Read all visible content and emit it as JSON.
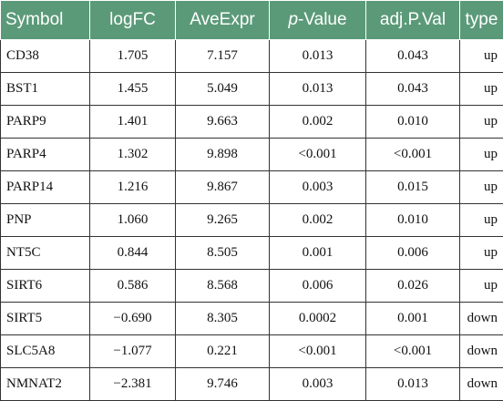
{
  "table": {
    "headers": {
      "symbol": "Symbol",
      "logfc": "logFC",
      "aveexpr": "AveExpr",
      "pvalue_italic": "p",
      "pvalue_rest": "-Value",
      "adjpval": "adj.P.Val",
      "type": "type"
    },
    "rows": [
      {
        "symbol": "CD38",
        "logfc": "1.705",
        "aveexpr": "7.157",
        "pvalue": "0.013",
        "adjpval": "0.043",
        "type": "up"
      },
      {
        "symbol": "BST1",
        "logfc": "1.455",
        "aveexpr": "5.049",
        "pvalue": "0.013",
        "adjpval": "0.043",
        "type": "up"
      },
      {
        "symbol": "PARP9",
        "logfc": "1.401",
        "aveexpr": "9.663",
        "pvalue": "0.002",
        "adjpval": "0.010",
        "type": "up"
      },
      {
        "symbol": "PARP4",
        "logfc": "1.302",
        "aveexpr": "9.898",
        "pvalue": "<0.001",
        "adjpval": "<0.001",
        "type": "up"
      },
      {
        "symbol": "PARP14",
        "logfc": "1.216",
        "aveexpr": "9.867",
        "pvalue": "0.003",
        "adjpval": "0.015",
        "type": "up"
      },
      {
        "symbol": "PNP",
        "logfc": "1.060",
        "aveexpr": "9.265",
        "pvalue": "0.002",
        "adjpval": "0.010",
        "type": "up"
      },
      {
        "symbol": "NT5C",
        "logfc": "0.844",
        "aveexpr": "8.505",
        "pvalue": "0.001",
        "adjpval": "0.006",
        "type": "up"
      },
      {
        "symbol": "SIRT6",
        "logfc": "0.586",
        "aveexpr": "8.568",
        "pvalue": "0.006",
        "adjpval": "0.026",
        "type": "up"
      },
      {
        "symbol": "SIRT5",
        "logfc": "−0.690",
        "aveexpr": "8.305",
        "pvalue": "0.0002",
        "adjpval": "0.001",
        "type": "down"
      },
      {
        "symbol": "SLC5A8",
        "logfc": "−1.077",
        "aveexpr": "0.221",
        "pvalue": "<0.001",
        "adjpval": "<0.001",
        "type": "down"
      },
      {
        "symbol": "NMNAT2",
        "logfc": "−2.381",
        "aveexpr": "9.746",
        "pvalue": "0.003",
        "adjpval": "0.013",
        "type": "down"
      }
    ]
  },
  "colors": {
    "header_bg": "#5b9a79",
    "header_text": "#ffffff",
    "border": "#333333"
  }
}
